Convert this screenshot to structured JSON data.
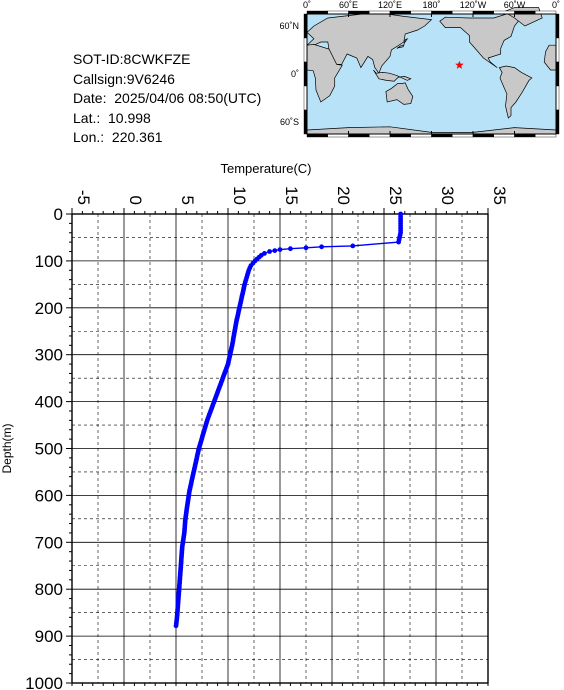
{
  "info": {
    "sot_id": "SOT-ID:8CWKFZE",
    "callsign": "Callsign:9V6246",
    "date": "Date:  2025/04/06 08:50(UTC)",
    "lat": "Lat.:  10.998",
    "lon": "Lon.:  220.361"
  },
  "map": {
    "lon_labels": [
      "0˚",
      "60˚E",
      "120˚E",
      "180˚",
      "120˚W",
      "60˚W",
      "0˚"
    ],
    "lat_labels": [
      "60˚N",
      "0˚",
      "60˚S"
    ],
    "marker": {
      "lat": 10.998,
      "lon": 220.361,
      "color": "#ff0000"
    },
    "ocean_color": "#b8e2f8",
    "land_color": "#c8c8c8"
  },
  "chart_data": {
    "type": "line",
    "title": "",
    "xlabel": "Temperature(C)",
    "ylabel": "Depth(m)",
    "xlim": [
      -5,
      35
    ],
    "ylim": [
      1000,
      0
    ],
    "x_ticks": [
      "-5",
      "0",
      "5",
      "10",
      "15",
      "20",
      "25",
      "30",
      "35"
    ],
    "y_ticks": [
      "0",
      "100",
      "200",
      "300",
      "400",
      "500",
      "600",
      "700",
      "800",
      "900",
      "1000"
    ],
    "grid": true,
    "line_color": "#0000ff",
    "series": [
      {
        "x": [
          26.6,
          26.6,
          26.6,
          26.6,
          26.6,
          26.5,
          26.4,
          22.0,
          19.0,
          17.5,
          16.0,
          15.0,
          14.5,
          14.0,
          13.5,
          13.2,
          13.0,
          12.8,
          12.6,
          12.4,
          12.2,
          12.0,
          11.8,
          11.6,
          11.4,
          11.2,
          11.0,
          10.8,
          10.6,
          10.4,
          10.2,
          10.0,
          9.5,
          9.0,
          8.5,
          8.0,
          7.6,
          7.2,
          6.9,
          6.6,
          6.3,
          6.1,
          5.9,
          5.8,
          5.6,
          5.5,
          5.4,
          5.3,
          5.2,
          5.1,
          5.0
        ],
        "y": [
          0,
          10,
          20,
          30,
          40,
          50,
          60,
          68,
          70,
          72,
          74,
          76,
          78,
          80,
          84,
          88,
          92,
          96,
          100,
          105,
          110,
          120,
          135,
          150,
          170,
          190,
          210,
          230,
          255,
          280,
          300,
          320,
          350,
          380,
          410,
          440,
          470,
          500,
          530,
          560,
          590,
          620,
          650,
          680,
          710,
          740,
          770,
          800,
          830,
          860,
          878
        ]
      }
    ]
  }
}
